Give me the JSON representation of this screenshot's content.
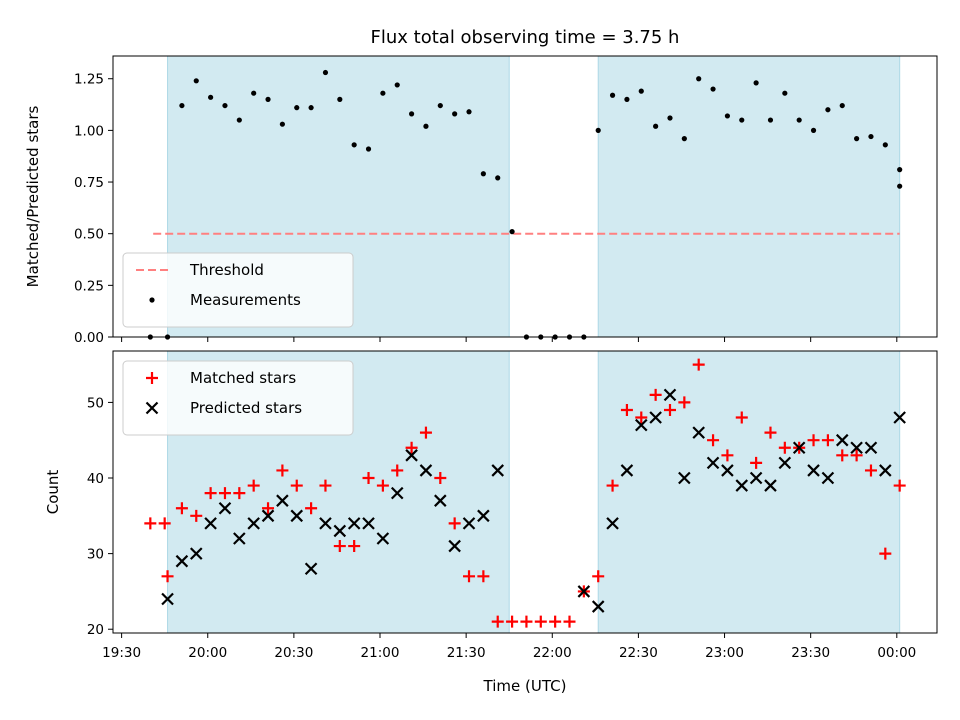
{
  "chart_data": {
    "title": "Flux total observing time = 3.75 h",
    "xlabel": "Time (UTC)",
    "x_ticks": [
      "19:30",
      "20:00",
      "20:30",
      "21:00",
      "21:30",
      "22:00",
      "22:30",
      "23:00",
      "23:30",
      "00:00"
    ],
    "x_range": [
      "19:27",
      "00:14"
    ],
    "shaded_intervals": [
      [
        "19:46",
        "21:45"
      ],
      [
        "22:16",
        "00:01"
      ]
    ],
    "shade_color": "#add8e6",
    "panels": [
      {
        "type": "scatter",
        "ylabel": "Matched/Predicted stars",
        "ylim": [
          0,
          1.36
        ],
        "y_ticks": [
          "0.00",
          "0.25",
          "0.50",
          "0.75",
          "1.00",
          "1.25"
        ],
        "grid": false,
        "legend_position": "lower-left",
        "threshold": {
          "name": "Threshold",
          "value": 0.5,
          "x_from": "19:41",
          "x_to": "00:01",
          "color": "#ff8080"
        },
        "series": [
          {
            "name": "Measurements",
            "color": "#000000",
            "x": [
              "19:40",
              "19:46",
              "19:51",
              "19:56",
              "20:01",
              "20:06",
              "20:11",
              "20:16",
              "20:21",
              "20:26",
              "20:31",
              "20:36",
              "20:41",
              "20:46",
              "20:51",
              "20:56",
              "21:01",
              "21:06",
              "21:11",
              "21:16",
              "21:21",
              "21:26",
              "21:31",
              "21:36",
              "21:41",
              "21:46",
              "21:51",
              "21:56",
              "22:01",
              "22:06",
              "22:11",
              "22:16",
              "22:21",
              "22:26",
              "22:31",
              "22:36",
              "22:41",
              "22:46",
              "22:51",
              "22:56",
              "23:01",
              "23:06",
              "23:11",
              "23:16",
              "23:21",
              "23:26",
              "23:31",
              "23:36",
              "23:41",
              "23:46",
              "23:51",
              "23:56",
              "00:01"
            ],
            "y": [
              0,
              0,
              1.12,
              1.24,
              1.16,
              1.12,
              1.05,
              1.18,
              1.15,
              1.03,
              1.11,
              1.11,
              1.28,
              1.15,
              0.93,
              0.91,
              1.18,
              1.22,
              1.08,
              1.02,
              1.12,
              1.08,
              1.09,
              0.79,
              0.77,
              0.51,
              0,
              0,
              0,
              0,
              0,
              1.0,
              1.17,
              1.15,
              1.19,
              1.02,
              1.06,
              0.96,
              1.25,
              1.2,
              1.07,
              1.05,
              1.23,
              1.05,
              1.18,
              1.05,
              1.0,
              1.1,
              1.12,
              0.96,
              0.97,
              0.93,
              0.73
            ]
          }
        ],
        "extra_point": {
          "x": "00:01",
          "y": 0.81
        }
      },
      {
        "type": "scatter",
        "ylabel": "Count",
        "ylim": [
          19.5,
          56.8
        ],
        "y_ticks": [
          "20",
          "30",
          "40",
          "50"
        ],
        "grid": false,
        "legend_position": "upper-left",
        "series": [
          {
            "name": "Matched stars",
            "marker": "+",
            "color": "#ff0000",
            "x": [
              "19:40",
              "19:45",
              "19:46",
              "19:51",
              "19:56",
              "20:01",
              "20:06",
              "20:11",
              "20:16",
              "20:21",
              "20:26",
              "20:31",
              "20:36",
              "20:41",
              "20:46",
              "20:51",
              "20:56",
              "21:01",
              "21:06",
              "21:11",
              "21:16",
              "21:21",
              "21:26",
              "21:31",
              "21:36",
              "21:41",
              "21:46",
              "21:51",
              "21:56",
              "22:01",
              "22:06",
              "22:11",
              "22:16",
              "22:21",
              "22:26",
              "22:31",
              "22:36",
              "22:41",
              "22:46",
              "22:51",
              "22:56",
              "23:01",
              "23:06",
              "23:11",
              "23:16",
              "23:21",
              "23:26",
              "23:31",
              "23:36",
              "23:41",
              "23:46",
              "23:51",
              "23:56",
              "00:01"
            ],
            "y": [
              34,
              34,
              27,
              36,
              35,
              38,
              38,
              38,
              39,
              36,
              41,
              39,
              36,
              39,
              31,
              31,
              40,
              39,
              41,
              44,
              46,
              40,
              34,
              27,
              27,
              21,
              21,
              21,
              21,
              21,
              21,
              25,
              27,
              39,
              49,
              48,
              51,
              49,
              50,
              55,
              45,
              43,
              48,
              42,
              46,
              44,
              44,
              45,
              45,
              43,
              43,
              41,
              30,
              39
            ]
          },
          {
            "name": "Predicted stars",
            "marker": "x",
            "color": "#000000",
            "x": [
              "19:46",
              "19:51",
              "19:56",
              "20:01",
              "20:06",
              "20:11",
              "20:16",
              "20:21",
              "20:26",
              "20:31",
              "20:36",
              "20:41",
              "20:46",
              "20:51",
              "20:56",
              "21:01",
              "21:06",
              "21:11",
              "21:16",
              "21:21",
              "21:26",
              "21:31",
              "21:36",
              "21:41",
              "22:11",
              "22:16",
              "22:21",
              "22:26",
              "22:31",
              "22:36",
              "22:41",
              "22:46",
              "22:51",
              "22:56",
              "23:01",
              "23:06",
              "23:11",
              "23:16",
              "23:21",
              "23:26",
              "23:31",
              "23:36",
              "23:41",
              "23:46",
              "23:51",
              "23:56",
              "00:01"
            ],
            "y": [
              24,
              29,
              30,
              34,
              36,
              32,
              34,
              35,
              37,
              35,
              28,
              34,
              33,
              34,
              34,
              32,
              38,
              43,
              41,
              37,
              31,
              34,
              35,
              41,
              25,
              23,
              34,
              41,
              47,
              48,
              51,
              40,
              46,
              42,
              41,
              39,
              40,
              39,
              42,
              44,
              41,
              40,
              45,
              44,
              44,
              41,
              48
            ]
          }
        ]
      }
    ]
  }
}
